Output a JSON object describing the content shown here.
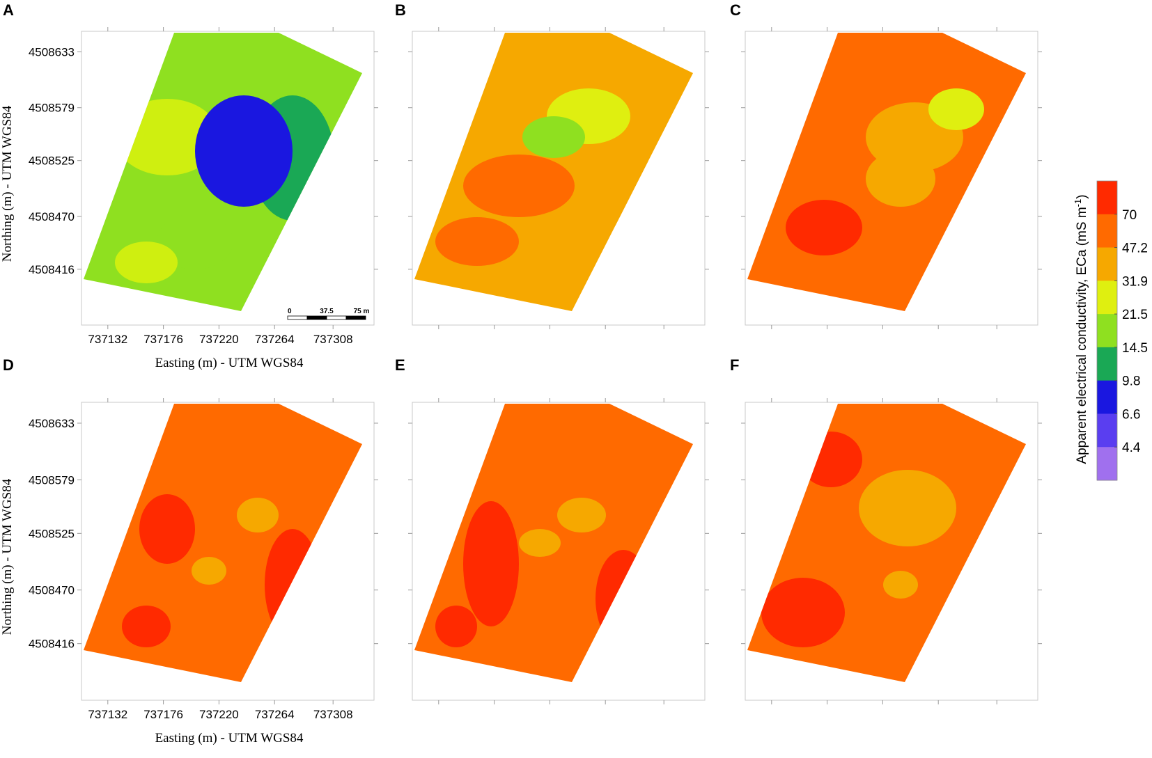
{
  "panels": [
    {
      "label": "A",
      "base": "#8fe020",
      "blobs": [
        "#cfef10",
        "#1aa855",
        "#1a17e0",
        "#8fe020",
        "#cfef10"
      ]
    },
    {
      "label": "B",
      "base": "#f6a800",
      "blobs": [
        "#ff6a00",
        "#dfef10",
        "#8fe020",
        "#ff6a00",
        "#f6a800"
      ]
    },
    {
      "label": "C",
      "base": "#ff6a00",
      "blobs": [
        "#f6a800",
        "#ff2a00",
        "#dfef10",
        "#f6a800",
        "#ff2a00"
      ]
    },
    {
      "label": "D",
      "base": "#ff6a00",
      "blobs": [
        "#ff2a00",
        "#f6a800",
        "#ff2a00",
        "#f6a800",
        "#ff2a00"
      ]
    },
    {
      "label": "E",
      "base": "#ff6a00",
      "blobs": [
        "#ff2a00",
        "#f6a800",
        "#ff2a00",
        "#f6a800",
        "#ff2a00"
      ]
    },
    {
      "label": "F",
      "base": "#ff6a00",
      "blobs": [
        "#ff2a00",
        "#f6a800",
        "#ff2a00",
        "#f6a800",
        "#ff2a00"
      ]
    }
  ],
  "axes": {
    "northing_label": "Northing (m) - UTM WGS84",
    "easting_label": "Easting (m) - UTM WGS84",
    "northing_ticks": [
      "4508633",
      "4508579",
      "4508525",
      "4508470",
      "4508416"
    ],
    "easting_ticks": [
      "737132",
      "737176",
      "737220",
      "737264",
      "737308"
    ]
  },
  "scale_bar": {
    "labels": [
      "0",
      "37.5",
      "75 m"
    ]
  },
  "legend": {
    "title": "Apparent electrical conductivity, ECa (mS m",
    "title_sup": "-1",
    "title_end": ")",
    "ticks": [
      "70",
      "47.2",
      "31.9",
      "21.5",
      "14.5",
      "9.8",
      "6.6",
      "4.4"
    ],
    "colors": [
      "#ff2a00",
      "#ff6a00",
      "#f6a800",
      "#dfef10",
      "#8fe020",
      "#1aa855",
      "#1a17e0",
      "#5a3ef0",
      "#a070ee"
    ]
  }
}
